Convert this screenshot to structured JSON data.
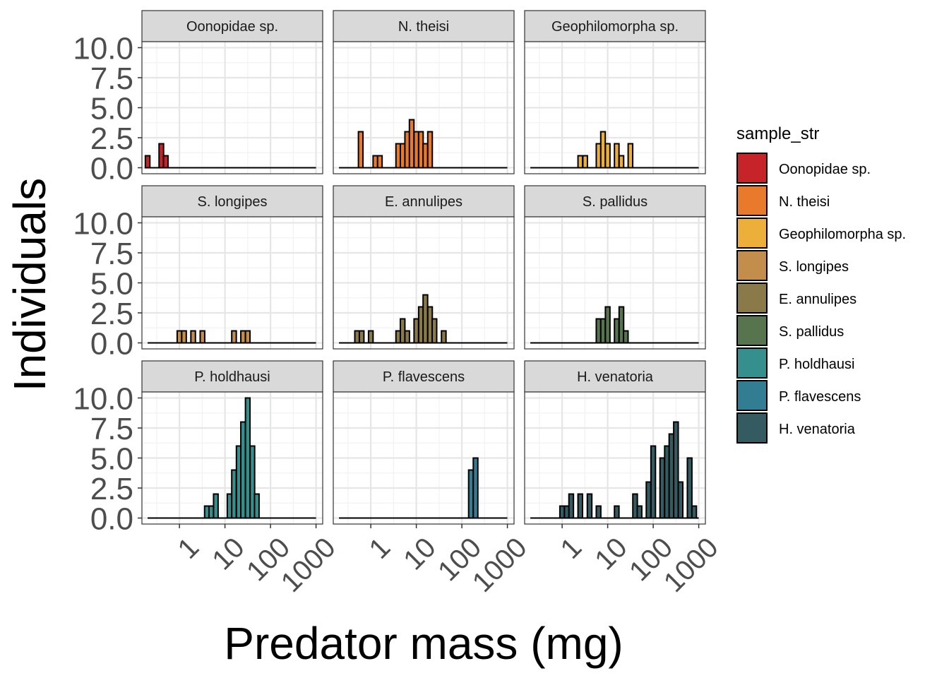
{
  "chart_data": {
    "type": "bar",
    "subtype": "faceted-histogram",
    "xlabel": "Predator mass (mg)",
    "ylabel": "Individuals",
    "x_scale": "log10",
    "x_ticks": [
      1,
      10,
      100,
      1000
    ],
    "x_tick_labels": [
      "1",
      "10",
      "100",
      "1000"
    ],
    "xlim": [
      0.15,
      1400
    ],
    "ylim": [
      -0.5,
      10.5
    ],
    "y_ticks": [
      0,
      2.5,
      5,
      7.5,
      10
    ],
    "y_tick_labels": [
      "0.0",
      "2.5",
      "5.0",
      "7.5",
      "10.0"
    ],
    "grid": true,
    "bin_width_log10": 0.1,
    "baseline_extent": [
      0.2,
      1000
    ],
    "legend": {
      "title": "sample_str",
      "placement": "right"
    },
    "facets": [
      {
        "name": "Oonopidae sp.",
        "color": "#C7242A",
        "bins": [
          {
            "x": 0.2,
            "y": 1
          },
          {
            "x": 0.4,
            "y": 2
          },
          {
            "x": 0.5,
            "y": 1
          }
        ]
      },
      {
        "name": "N. theisi",
        "color": "#E97A2C",
        "bins": [
          {
            "x": 0.6,
            "y": 3
          },
          {
            "x": 1.26,
            "y": 1
          },
          {
            "x": 1.58,
            "y": 1
          },
          {
            "x": 4,
            "y": 2
          },
          {
            "x": 5,
            "y": 2
          },
          {
            "x": 6.3,
            "y": 3
          },
          {
            "x": 7.9,
            "y": 4
          },
          {
            "x": 10,
            "y": 3
          },
          {
            "x": 12.6,
            "y": 3
          },
          {
            "x": 15.8,
            "y": 2
          },
          {
            "x": 20,
            "y": 3
          }
        ]
      },
      {
        "name": "Geophilomorpha sp.",
        "color": "#ECB03A",
        "bins": [
          {
            "x": 2.5,
            "y": 1
          },
          {
            "x": 3.2,
            "y": 1
          },
          {
            "x": 6.3,
            "y": 2
          },
          {
            "x": 7.9,
            "y": 3
          },
          {
            "x": 10,
            "y": 2
          },
          {
            "x": 15.8,
            "y": 2
          },
          {
            "x": 20,
            "y": 1
          },
          {
            "x": 31.6,
            "y": 2
          }
        ]
      },
      {
        "name": "S. longipes",
        "color": "#C38D4C",
        "bins": [
          {
            "x": 1,
            "y": 1
          },
          {
            "x": 1.26,
            "y": 1
          },
          {
            "x": 2,
            "y": 1
          },
          {
            "x": 3.2,
            "y": 1
          },
          {
            "x": 15.8,
            "y": 1
          },
          {
            "x": 25,
            "y": 1
          },
          {
            "x": 31.6,
            "y": 1
          }
        ]
      },
      {
        "name": "E. annulipes",
        "color": "#8A7A49",
        "bins": [
          {
            "x": 0.5,
            "y": 1
          },
          {
            "x": 0.63,
            "y": 1
          },
          {
            "x": 1,
            "y": 1
          },
          {
            "x": 4,
            "y": 1
          },
          {
            "x": 5,
            "y": 2
          },
          {
            "x": 6.3,
            "y": 1
          },
          {
            "x": 10,
            "y": 2
          },
          {
            "x": 12.6,
            "y": 3
          },
          {
            "x": 15.8,
            "y": 4
          },
          {
            "x": 20,
            "y": 3
          },
          {
            "x": 25,
            "y": 2
          },
          {
            "x": 40,
            "y": 1
          }
        ]
      },
      {
        "name": "S. pallidus",
        "color": "#56744E",
        "bins": [
          {
            "x": 6.3,
            "y": 2
          },
          {
            "x": 7.9,
            "y": 2
          },
          {
            "x": 10,
            "y": 3
          },
          {
            "x": 15.8,
            "y": 2
          },
          {
            "x": 20,
            "y": 3
          },
          {
            "x": 25,
            "y": 1
          }
        ]
      },
      {
        "name": "P. holdhausi",
        "color": "#358F8C",
        "bins": [
          {
            "x": 4,
            "y": 1
          },
          {
            "x": 5,
            "y": 1
          },
          {
            "x": 6.3,
            "y": 2
          },
          {
            "x": 12.6,
            "y": 2
          },
          {
            "x": 15.8,
            "y": 4
          },
          {
            "x": 20,
            "y": 6
          },
          {
            "x": 25,
            "y": 8
          },
          {
            "x": 31.6,
            "y": 10
          },
          {
            "x": 40,
            "y": 6
          },
          {
            "x": 50,
            "y": 2
          }
        ]
      },
      {
        "name": "P. flavescens",
        "color": "#337D93",
        "bins": [
          {
            "x": 158,
            "y": 4
          },
          {
            "x": 200,
            "y": 5
          }
        ]
      },
      {
        "name": "H. venatoria",
        "color": "#345B62",
        "bins": [
          {
            "x": 1,
            "y": 1
          },
          {
            "x": 1.26,
            "y": 1
          },
          {
            "x": 1.58,
            "y": 2
          },
          {
            "x": 2.5,
            "y": 2
          },
          {
            "x": 4,
            "y": 2
          },
          {
            "x": 6.3,
            "y": 1
          },
          {
            "x": 15.8,
            "y": 1
          },
          {
            "x": 40,
            "y": 2
          },
          {
            "x": 50,
            "y": 1
          },
          {
            "x": 79,
            "y": 3
          },
          {
            "x": 100,
            "y": 6
          },
          {
            "x": 158,
            "y": 5
          },
          {
            "x": 200,
            "y": 6
          },
          {
            "x": 251,
            "y": 7
          },
          {
            "x": 316,
            "y": 8
          },
          {
            "x": 398,
            "y": 3
          },
          {
            "x": 631,
            "y": 5
          },
          {
            "x": 794,
            "y": 1
          }
        ]
      }
    ]
  }
}
